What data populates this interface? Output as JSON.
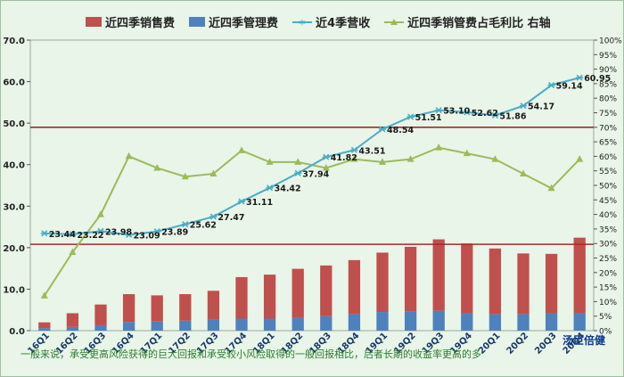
{
  "chart_data": {
    "type": "bar+line",
    "categories": [
      "16Q1",
      "16Q2",
      "16Q3",
      "16Q4",
      "17Q1",
      "17Q2",
      "17Q3",
      "17Q4",
      "18Q1",
      "18Q2",
      "18Q3",
      "18Q4",
      "19Q1",
      "19Q2",
      "19Q3",
      "19Q4",
      "20Q1",
      "20Q2",
      "20Q3",
      "20Q4"
    ],
    "series": [
      {
        "name": "近四季销售费",
        "type": "stacked-bar",
        "axis": "left",
        "values": [
          1.4,
          3.3,
          5.0,
          6.7,
          6.3,
          6.4,
          7.0,
          10.0,
          10.6,
          11.8,
          12.2,
          13.0,
          14.3,
          15.5,
          17.2,
          16.8,
          15.8,
          14.6,
          14.4,
          18.2
        ]
      },
      {
        "name": "近四季管理费",
        "type": "stacked-bar",
        "axis": "left",
        "values": [
          0.6,
          0.9,
          1.3,
          2.1,
          2.2,
          2.4,
          2.6,
          2.9,
          2.9,
          3.1,
          3.5,
          4.0,
          4.5,
          4.7,
          4.8,
          4.2,
          4.0,
          4.0,
          4.1,
          4.2
        ]
      },
      {
        "name": "近4季营收",
        "type": "line",
        "axis": "left",
        "values": [
          23.44,
          23.22,
          23.98,
          23.09,
          23.89,
          25.62,
          27.47,
          31.11,
          34.42,
          37.94,
          41.82,
          43.51,
          48.54,
          51.51,
          53.1,
          52.62,
          51.86,
          54.17,
          59.14,
          60.95
        ],
        "labels": [
          "23.44",
          "23.22",
          "23.98",
          "23.09",
          "23.89",
          "25.62",
          "27.47",
          "31.11",
          "34.42",
          "37.94",
          "41.82",
          "43.51",
          "48.54",
          "51.51",
          "53.10",
          "52.62",
          "51.86",
          "54.17",
          "59.14",
          "60.95"
        ]
      },
      {
        "name": "近四季销管费占毛利比 右轴",
        "type": "line",
        "axis": "right",
        "values": [
          12,
          27,
          40,
          60,
          56,
          53,
          54,
          62,
          58,
          58,
          56,
          59,
          58,
          59,
          63,
          61,
          59,
          54,
          49,
          59
        ]
      }
    ],
    "left_axis": {
      "min": 0,
      "max": 70,
      "step": 10,
      "ticks": [
        "0.0",
        "10.0",
        "20.0",
        "30.0",
        "40.0",
        "50.0",
        "60.0",
        "70.0"
      ]
    },
    "right_axis": {
      "min": 0,
      "max": 100,
      "step": 5,
      "suffix": "%"
    },
    "reference_lines": [
      {
        "axis": "left",
        "value": 49
      },
      {
        "axis": "left",
        "value": 20.8
      }
    ],
    "colors": {
      "sales": "#c0504d",
      "admin": "#4f81bd",
      "revenue": "#4bacc6",
      "ratio": "#9bbb59",
      "refline": "#a52a2a",
      "background": "#e8f5e8"
    }
  },
  "footer_note": "一般来说，承受更高风险获得的巨大回报和承受较小风险取得的一般回报相比，后者长期的收益率更高的多",
  "watermark": "汤臣倍健"
}
